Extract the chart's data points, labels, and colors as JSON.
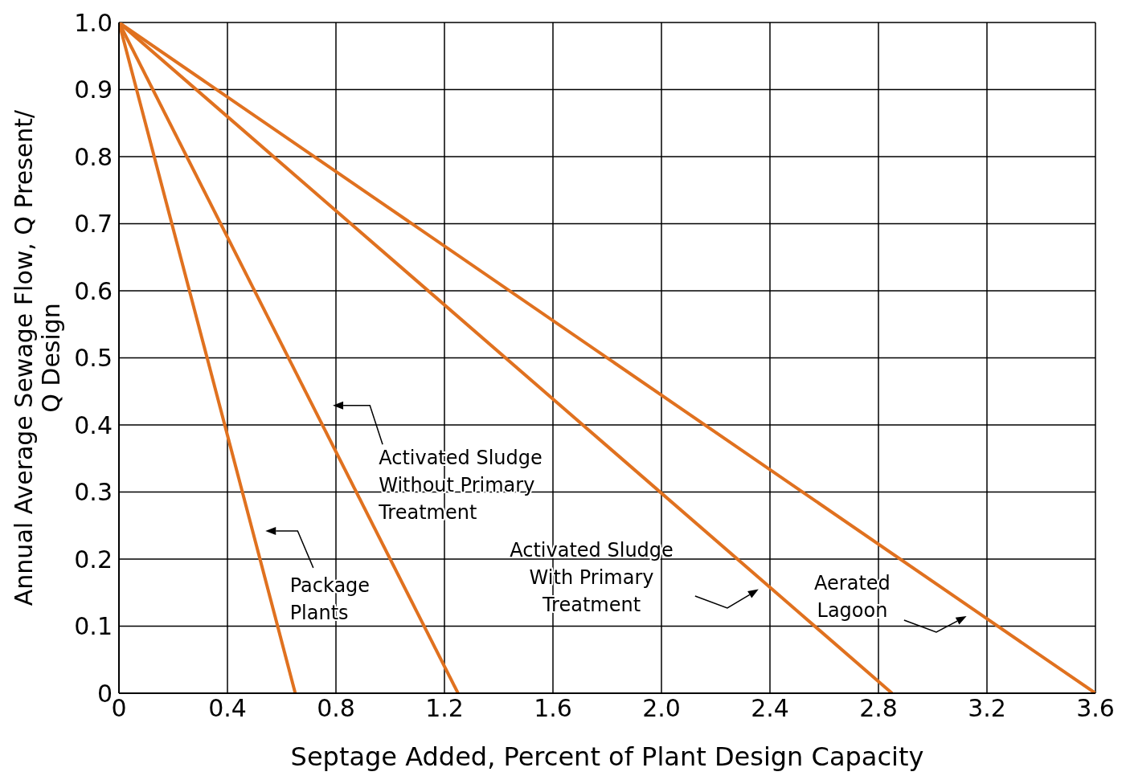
{
  "chart_data": {
    "type": "line",
    "xlabel": "Septage Added, Percent of Plant Design Capacity",
    "ylabel": "Annual Average Sewage Flow, Q Present/\nQ Design",
    "xlim": [
      0,
      3.6
    ],
    "xticks": [
      0,
      0.4,
      0.8,
      1.2,
      1.6,
      {
        "value": 2,
        "label": "2.0"
      },
      2.4,
      2.8,
      3.2,
      3.6
    ],
    "ylim": [
      0,
      1
    ],
    "yticks": [
      0,
      0.1,
      0.2,
      0.3,
      0.4,
      0.5,
      0.6,
      0.7,
      0.8,
      0.9,
      {
        "value": 1,
        "label": "1.0"
      }
    ],
    "grid": true,
    "marker": "none",
    "line_style": "solid",
    "series": [
      {
        "color": "#e0711f",
        "x": [
          0,
          0.65
        ],
        "values": [
          1,
          0
        ]
      },
      {
        "color": "#e0711f",
        "x": [
          0,
          1.25
        ],
        "values": [
          1,
          0
        ]
      },
      {
        "color": "#e0711f",
        "x": [
          0,
          2.85
        ],
        "values": [
          1,
          0
        ]
      },
      {
        "color": "#e0711f",
        "x": [
          0,
          3.6
        ],
        "values": [
          1,
          0
        ]
      }
    ],
    "annotations": [
      "Package\nPlants",
      "Activated Sludge\nWithout Primary\nTreatment",
      "Activated Sludge\nWith Primary\nTreatment",
      "Aerated\nLagoon"
    ]
  }
}
